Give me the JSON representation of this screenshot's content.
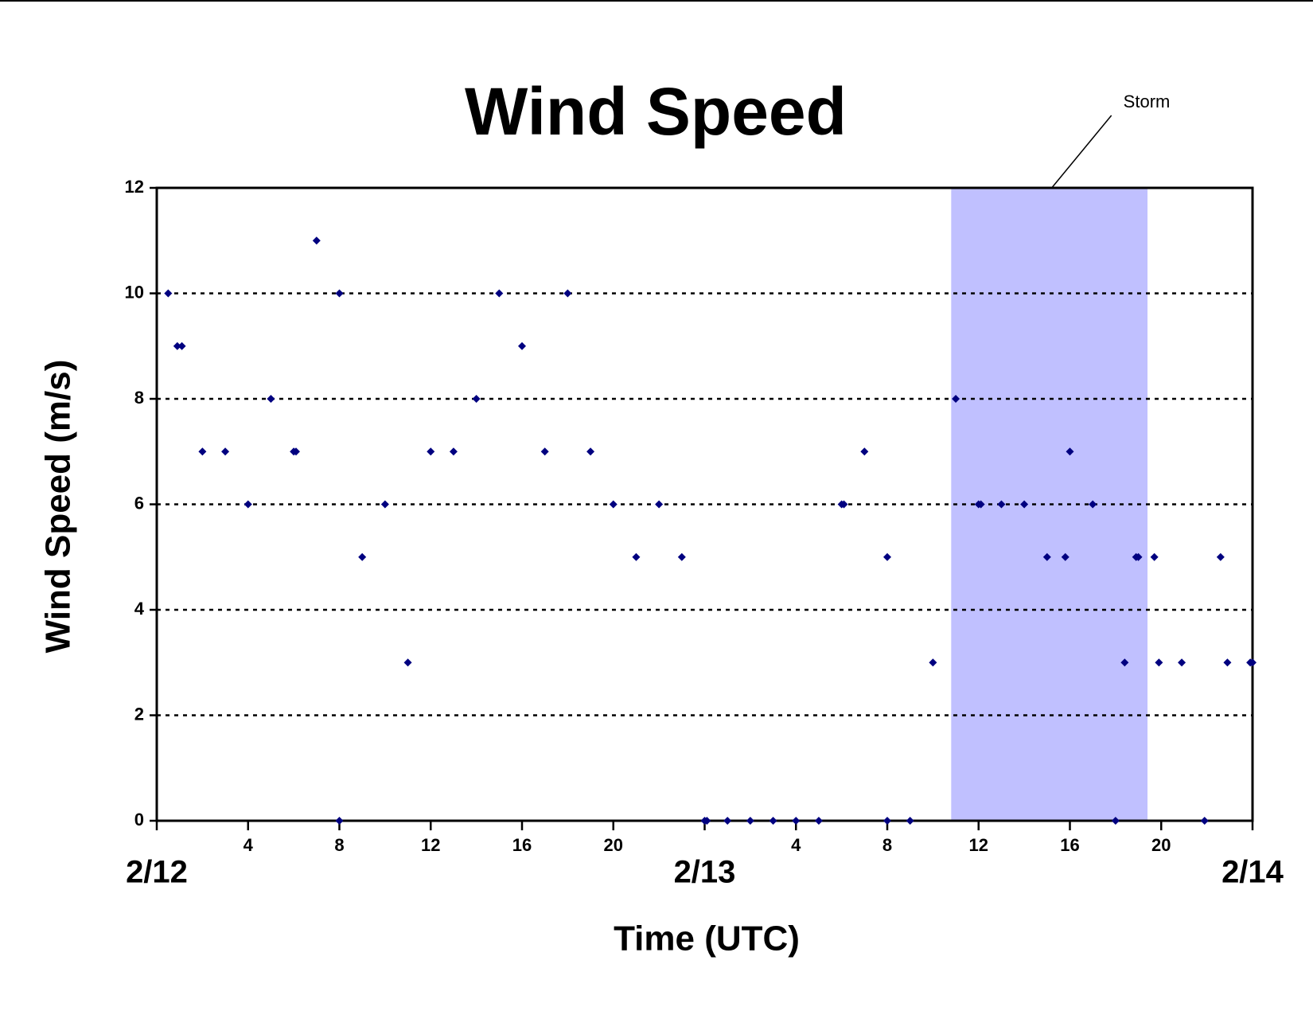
{
  "chart_data": {
    "type": "scatter",
    "title": "Wind Speed",
    "x_label": "Time (UTC)",
    "y_label": "Wind Speed (m/s)",
    "series": [
      {
        "name": "Wind Speed",
        "color": "#000080",
        "x": [
          0.5,
          0.9,
          1.1,
          2,
          3,
          4,
          5,
          6,
          6.1,
          7,
          8,
          8,
          9,
          10,
          11,
          12,
          13,
          14,
          15,
          16,
          17,
          18,
          19,
          20,
          21,
          22,
          23,
          24,
          24.1,
          25,
          26,
          27,
          28,
          29,
          30,
          30.1,
          31,
          32,
          32,
          33,
          34,
          35,
          36,
          36.1,
          37,
          38,
          39,
          39.8,
          40,
          41,
          42,
          42.4,
          42.9,
          43,
          43.7,
          43.9,
          44.9,
          45.9,
          46.6,
          46.9,
          47.9,
          48
        ],
        "values": [
          10,
          9,
          9,
          7,
          7,
          6,
          8,
          7,
          7,
          11,
          10,
          0,
          5,
          6,
          3,
          7,
          7,
          8,
          10,
          9,
          7,
          10,
          7,
          6,
          5,
          6,
          5,
          0,
          0,
          0,
          0,
          0,
          0,
          0,
          6,
          6,
          7,
          5,
          0,
          0,
          3,
          8,
          6,
          6,
          6,
          6,
          5,
          5,
          7,
          6,
          0,
          3,
          5,
          5,
          5,
          3,
          3,
          0,
          5,
          3,
          3,
          3
        ]
      }
    ],
    "shaded_region": {
      "x": [
        34.8,
        43.4
      ],
      "color": "#c0c0ff",
      "label": "Storm"
    },
    "xlim": [
      0,
      48
    ],
    "xticks": [
      {
        "value": 0,
        "label": "2/12"
      },
      4,
      8,
      12,
      16,
      20,
      {
        "value": 24,
        "label": "2/13"
      },
      4,
      8,
      12,
      16,
      20,
      {
        "value": 48,
        "label": "2/14"
      }
    ],
    "ylim": [
      0,
      12
    ],
    "yticks": [
      0,
      2,
      4,
      6,
      8,
      10,
      12
    ],
    "grid": true
  }
}
